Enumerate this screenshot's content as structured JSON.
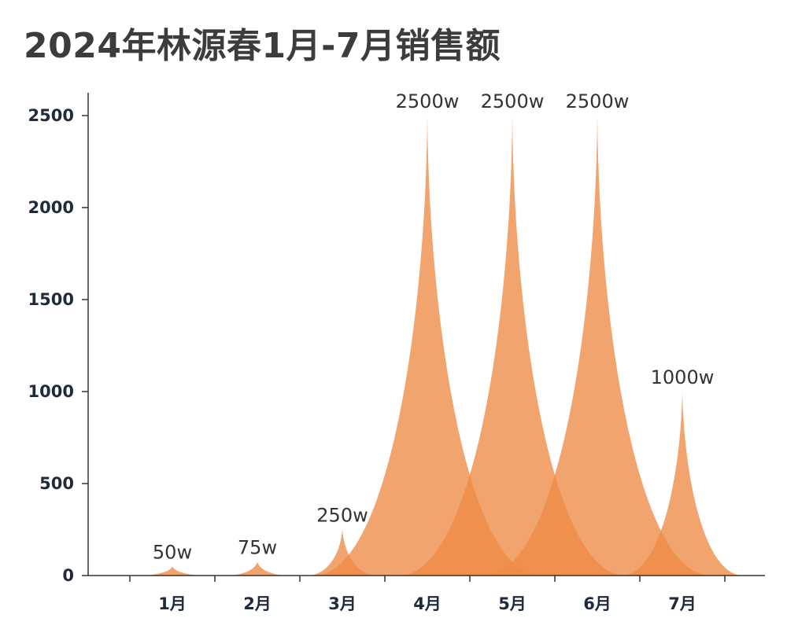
{
  "chart_data": {
    "type": "area",
    "title": "2024年林源春1月-7月销售额",
    "xlabel": "",
    "ylabel": "",
    "categories": [
      "1月",
      "2月",
      "3月",
      "4月",
      "5月",
      "6月",
      "7月"
    ],
    "values": [
      50,
      75,
      250,
      2500,
      2500,
      2500,
      1000
    ],
    "data_labels": [
      "50w",
      "75w",
      "250w",
      "2500w",
      "2500w",
      "2500w",
      "1000w"
    ],
    "y_ticks": [
      0,
      500,
      1000,
      1500,
      2000,
      2500
    ],
    "ylim": [
      0,
      2500
    ],
    "grid": false,
    "legend": "none",
    "color": "#ee8a45"
  }
}
